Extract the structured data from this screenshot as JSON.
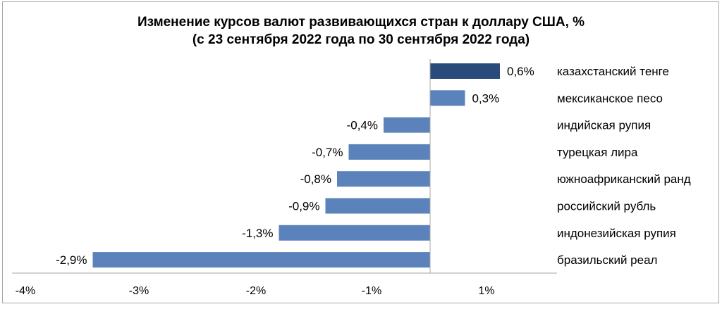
{
  "chart_data": {
    "type": "bar",
    "orientation": "horizontal",
    "title": "Изменение курсов валют развивающихся стран к доллару США, %",
    "subtitle": "(с 23 сентября 2022 года по 30 сентября 2022 года)",
    "categories": [
      "казахстанский тенге",
      "мексиканское песо",
      "индийская рупия",
      "турецкая лира",
      "южноафриканский ранд",
      "российский рубль",
      "индонезийская рупия",
      "бразильский реал"
    ],
    "values": [
      0.6,
      0.3,
      -0.4,
      -0.7,
      -0.8,
      -0.9,
      -1.3,
      -2.9
    ],
    "data_labels": [
      "0,6%",
      "0,3%",
      "-0,4%",
      "-0,7%",
      "-0,8%",
      "-0,9%",
      "-1,3%",
      "-2,9%"
    ],
    "x_tick_labels": [
      "-4%",
      "-3%",
      "-2%",
      "-1%",
      "1%"
    ],
    "xlabel": "",
    "ylabel": "",
    "grid": false,
    "legend": "none",
    "colors": {
      "highlight": "#2b4a7c",
      "default": "#5b82ba",
      "axis": "#a6a6a6"
    }
  }
}
